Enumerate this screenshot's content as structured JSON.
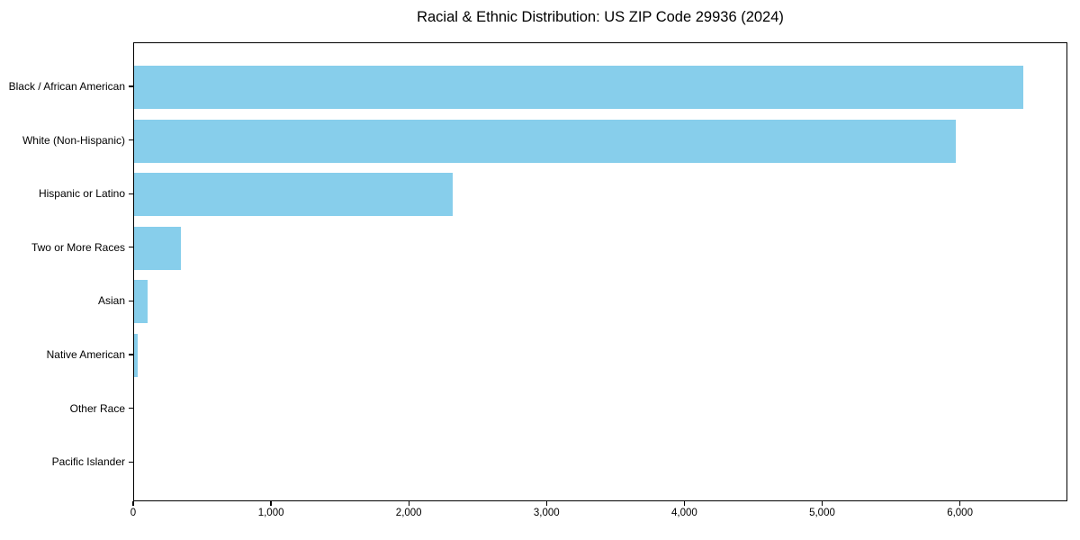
{
  "chart_data": {
    "type": "bar",
    "orientation": "horizontal",
    "title": "Racial & Ethnic Distribution: US ZIP Code 29936 (2024)",
    "categories": [
      "Black / African American",
      "White (Non-Hispanic)",
      "Hispanic or Latino",
      "Two or More Races",
      "Asian",
      "Native American",
      "Other Race",
      "Pacific Islander"
    ],
    "values": [
      6450,
      5960,
      2310,
      340,
      100,
      25,
      0,
      0
    ],
    "xlabel": "",
    "ylabel": "",
    "xlim": [
      0,
      6780
    ],
    "x_ticks": [
      {
        "value": 0,
        "label": "0"
      },
      {
        "value": 1000,
        "label": "1,000"
      },
      {
        "value": 2000,
        "label": "2,000"
      },
      {
        "value": 3000,
        "label": "3,000"
      },
      {
        "value": 4000,
        "label": "4,000"
      },
      {
        "value": 5000,
        "label": "5,000"
      },
      {
        "value": 6000,
        "label": "6,000"
      }
    ],
    "bar_color": "#87CEEB",
    "axis_color": "#000000",
    "text_color": "#000000",
    "background_color": "#ffffff",
    "grid": false,
    "legend": false
  }
}
